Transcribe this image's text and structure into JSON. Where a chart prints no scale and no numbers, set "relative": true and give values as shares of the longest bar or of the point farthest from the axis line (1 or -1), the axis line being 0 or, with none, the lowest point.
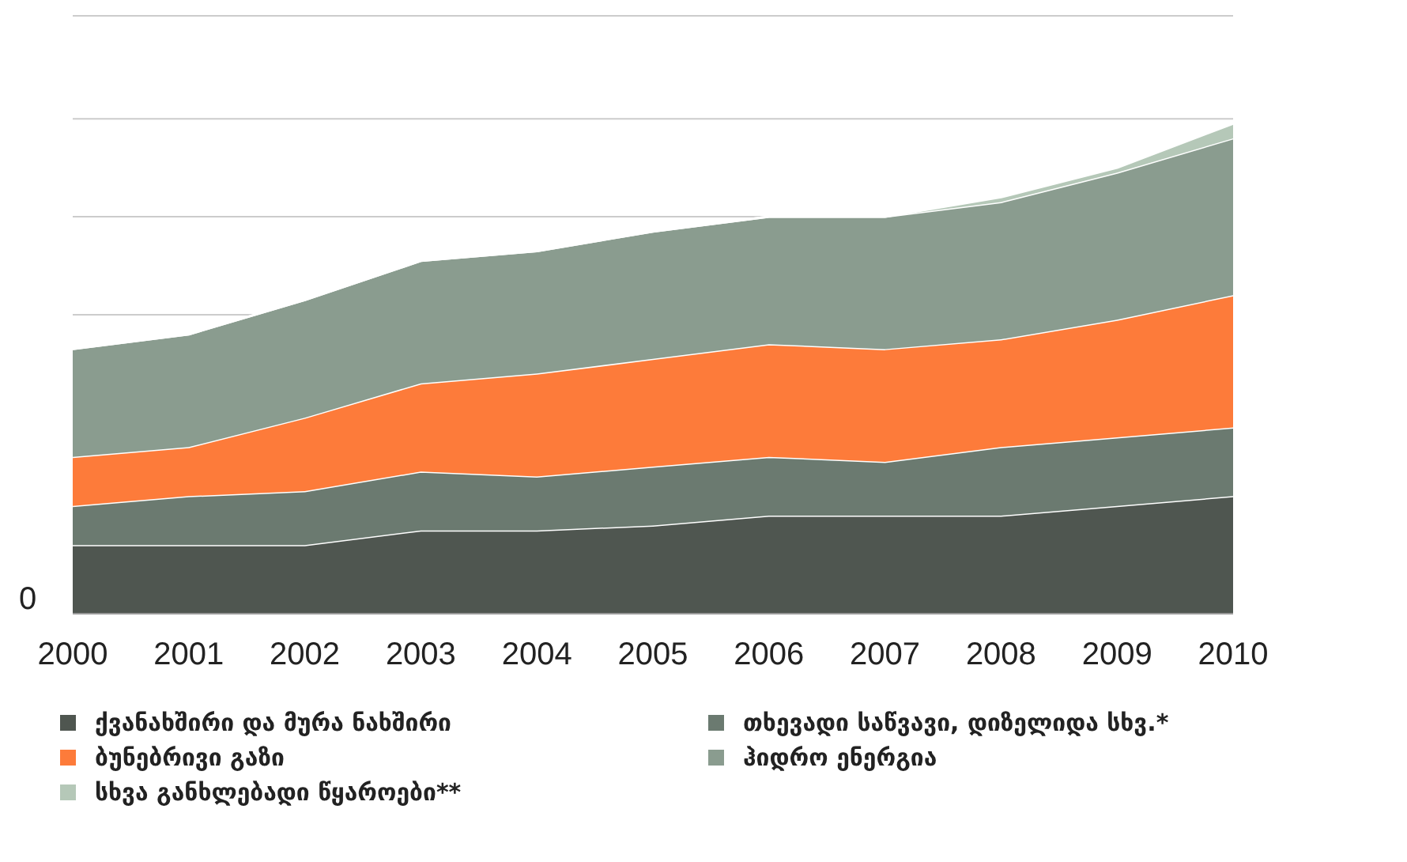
{
  "chart_data": {
    "type": "area",
    "stacked": true,
    "relative": true,
    "legend": "bottom",
    "ref_lines": [
      {
        "axis": "y",
        "value": 0.61,
        "color": "#cccccc"
      },
      {
        "axis": "y",
        "value": 0.81,
        "color": "#cccccc"
      },
      {
        "axis": "y",
        "value": 1.01,
        "color": "#cccccc"
      },
      {
        "axis": "y",
        "value": 1.22,
        "color": "#cccccc"
      }
    ],
    "categories": [
      "2000",
      "2001",
      "2002",
      "2003",
      "2004",
      "2005",
      "2006",
      "2007",
      "2008",
      "2009",
      "2010"
    ],
    "series": [
      {
        "name": "ქვანახშირი და მურა ნახშირი",
        "color": "#4f5650",
        "values": [
          0.14,
          0.14,
          0.14,
          0.17,
          0.17,
          0.18,
          0.2,
          0.2,
          0.2,
          0.22,
          0.24
        ]
      },
      {
        "name": "თხევადი საწვავი, დიზელიდა სხვ.*",
        "color": "#6b7a70",
        "values": [
          0.08,
          0.1,
          0.11,
          0.12,
          0.11,
          0.12,
          0.12,
          0.11,
          0.14,
          0.14,
          0.14
        ]
      },
      {
        "name": "ბუნებრივი გაზი",
        "color": "#fd7b3a",
        "values": [
          0.1,
          0.1,
          0.15,
          0.18,
          0.21,
          0.22,
          0.23,
          0.23,
          0.22,
          0.24,
          0.27
        ]
      },
      {
        "name": "ჰიდრო ენერგია",
        "color": "#8a9c8f",
        "values": [
          0.22,
          0.23,
          0.24,
          0.25,
          0.25,
          0.26,
          0.26,
          0.27,
          0.28,
          0.3,
          0.32
        ]
      },
      {
        "name": "სხვა განხლებადი წყაროები**",
        "color": "#b5c8b8",
        "values": [
          0,
          0,
          0,
          0,
          0,
          0,
          0,
          0,
          0.01,
          0.01,
          0.03
        ]
      }
    ],
    "annotations": [
      "0"
    ]
  }
}
